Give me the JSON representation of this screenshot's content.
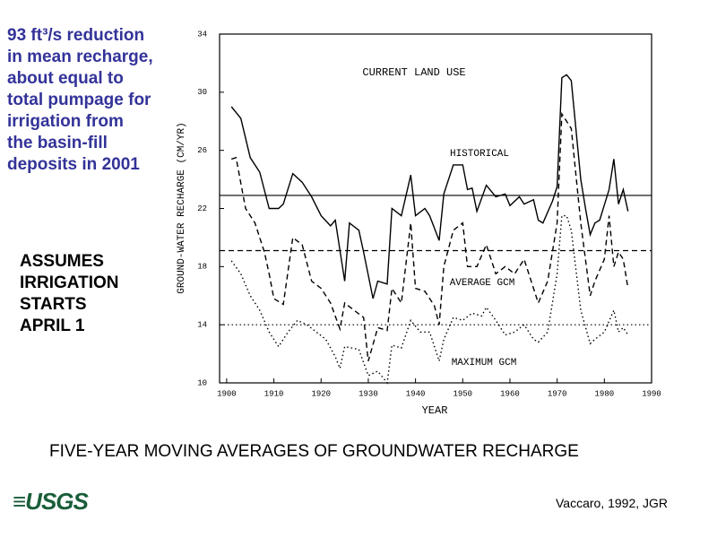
{
  "note": [
    "93 ft³/s reduction",
    "in mean recharge,",
    "about equal to",
    "total pumpage for",
    "irrigation from",
    "the basin-fill",
    "deposits in 2001"
  ],
  "assumption": [
    "ASSUMES",
    "IRRIGATION",
    "STARTS",
    "APRIL 1"
  ],
  "caption": "FIVE-YEAR MOVING AVERAGES OF GROUNDWATER RECHARGE",
  "logo": "≡USGS",
  "citation": "Vaccaro, 1992, JGR",
  "chart_data": {
    "type": "line",
    "title": "CURRENT LAND USE",
    "x_label": "YEAR",
    "y_label": "GROUND-WATER RECHARGE (CM/YR)",
    "xlim": [
      1898.5,
      1990
    ],
    "xticks": [
      1900,
      1910,
      1920,
      1930,
      1940,
      1950,
      1960,
      1970,
      1980,
      1990
    ],
    "ylim": [
      10,
      34
    ],
    "yticks": [
      10,
      14,
      18,
      22,
      26,
      30,
      34
    ],
    "series": [
      {
        "name": "HISTORICAL",
        "color": "#000",
        "style": "solid",
        "mean": 22.9,
        "x": [
          1901,
          1903,
          1905,
          1907,
          1909,
          1911,
          1912,
          1914,
          1916,
          1918,
          1920,
          1922,
          1923,
          1925,
          1926,
          1928,
          1929,
          1931,
          1932,
          1934,
          1935,
          1937,
          1939,
          1940,
          1942,
          1943,
          1945,
          1946,
          1948,
          1950,
          1951,
          1952,
          1953,
          1955,
          1957,
          1959,
          1960,
          1962,
          1963,
          1965,
          1966,
          1967,
          1969,
          1970,
          1971,
          1972,
          1973,
          1975,
          1976,
          1977,
          1978,
          1979,
          1981,
          1982,
          1983,
          1984,
          1985
        ],
        "values": [
          29,
          28.2,
          25.5,
          24.5,
          22,
          22,
          22.3,
          24.4,
          23.8,
          22.8,
          21.5,
          20.8,
          21.2,
          17,
          21,
          20.5,
          19,
          15.8,
          17,
          16.8,
          22,
          21.5,
          24.3,
          21.5,
          22,
          21.5,
          19.8,
          23,
          25,
          25,
          23.3,
          23.4,
          21.8,
          23.6,
          22.8,
          23,
          22.2,
          22.8,
          22.3,
          22.6,
          21.2,
          21,
          22.5,
          23.5,
          31,
          31.2,
          30.8,
          24,
          22,
          20.2,
          21,
          21.2,
          23.3,
          25.4,
          22.3,
          23.3,
          21.8
        ]
      },
      {
        "name": "AVERAGE GCM",
        "color": "#000",
        "style": "dashed",
        "mean": 19.1,
        "x": [
          1901,
          1902,
          1904,
          1906,
          1908,
          1909,
          1910,
          1912,
          1914,
          1916,
          1918,
          1920,
          1922,
          1924,
          1925,
          1927,
          1929,
          1930,
          1932,
          1934,
          1935,
          1937,
          1939,
          1940,
          1942,
          1944,
          1945,
          1946,
          1948,
          1950,
          1951,
          1953,
          1955,
          1957,
          1959,
          1961,
          1963,
          1965,
          1966,
          1968,
          1970,
          1971,
          1972,
          1973,
          1975,
          1977,
          1978,
          1980,
          1981,
          1982,
          1983,
          1984,
          1985
        ],
        "values": [
          25.4,
          25.5,
          22,
          21,
          19,
          17.5,
          15.8,
          15.4,
          20,
          19.5,
          17,
          16.5,
          15.5,
          13.7,
          15.5,
          15,
          14.5,
          11.5,
          13.8,
          13.6,
          16.5,
          15.5,
          21,
          16.5,
          16.3,
          15.3,
          14,
          18,
          20.5,
          21,
          18,
          18,
          19.5,
          17.5,
          18,
          17.5,
          18.5,
          16.5,
          15.5,
          17,
          21,
          28.5,
          28,
          27.5,
          21,
          16,
          17,
          18.5,
          21.5,
          18,
          19,
          18.5,
          16.5
        ]
      },
      {
        "name": "MAXIMUM GCM",
        "color": "#000",
        "style": "dotted",
        "mean": 14,
        "x": [
          1901,
          1903,
          1905,
          1907,
          1909,
          1911,
          1913,
          1915,
          1917,
          1919,
          1921,
          1923,
          1924,
          1925,
          1928,
          1930,
          1932,
          1934,
          1935,
          1937,
          1939,
          1941,
          1943,
          1945,
          1946,
          1948,
          1950,
          1952,
          1954,
          1955,
          1957,
          1959,
          1961,
          1963,
          1965,
          1966,
          1968,
          1970,
          1971,
          1972,
          1973,
          1975,
          1977,
          1978,
          1980,
          1982,
          1983,
          1984,
          1985
        ],
        "values": [
          18.4,
          17.5,
          16,
          15,
          13.5,
          12.5,
          13.5,
          14.3,
          14,
          13.5,
          13,
          11.8,
          11,
          12.5,
          12.3,
          10.5,
          10.8,
          10,
          12.6,
          12.4,
          14.3,
          13.5,
          13.5,
          11.5,
          13,
          14.5,
          14.3,
          14.8,
          14.6,
          15.2,
          14.3,
          13.3,
          13.5,
          14,
          13,
          12.8,
          13.5,
          17.5,
          21.5,
          21.5,
          20.5,
          15,
          12.7,
          13,
          13.5,
          15,
          13.5,
          13.8,
          13.3
        ]
      }
    ]
  }
}
